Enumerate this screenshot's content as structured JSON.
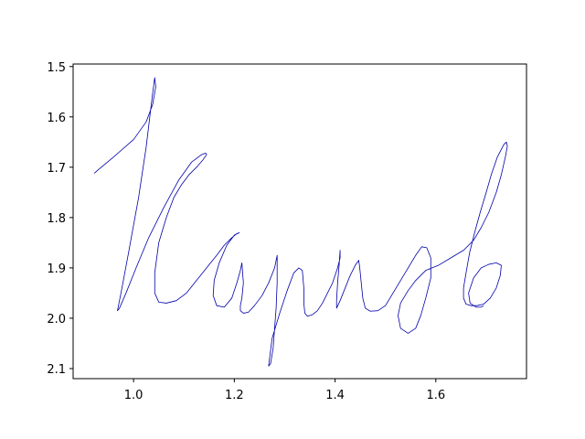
{
  "chart_data": {
    "type": "line",
    "title": "",
    "xlabel": "",
    "ylabel": "",
    "xlim": [
      0.88,
      1.78
    ],
    "ylim": [
      2.12,
      1.495
    ],
    "y_inverted": true,
    "grid": false,
    "legend": "none",
    "x_ticks": [
      {
        "value": 1.0,
        "label": "1.0"
      },
      {
        "value": 1.2,
        "label": "1.2"
      },
      {
        "value": 1.4,
        "label": "1.4"
      },
      {
        "value": 1.6,
        "label": "1.6"
      }
    ],
    "y_ticks": [
      {
        "value": 1.5,
        "label": "1.5"
      },
      {
        "value": 1.6,
        "label": "1.6"
      },
      {
        "value": 1.7,
        "label": "1.7"
      },
      {
        "value": 1.8,
        "label": "1.8"
      },
      {
        "value": 1.9,
        "label": "1.9"
      },
      {
        "value": 2.0,
        "label": "2.0"
      },
      {
        "value": 2.1,
        "label": "2.1"
      }
    ],
    "series": [
      {
        "color": "#0000aa",
        "x": [
          0.922,
          0.93,
          0.96,
          1.0,
          1.025,
          1.038,
          1.044,
          1.042,
          1.037,
          1.025,
          1.01,
          0.99,
          0.975,
          0.968,
          0.972,
          0.985,
          1.005,
          1.03,
          1.06,
          1.09,
          1.115,
          1.135,
          1.143,
          1.145,
          1.138,
          1.125,
          1.11,
          1.095,
          1.08,
          1.065,
          1.05,
          1.042,
          1.042,
          1.05,
          1.065,
          1.085,
          1.105,
          1.125,
          1.145,
          1.165,
          1.18,
          1.195,
          1.205,
          1.21,
          1.2,
          1.185,
          1.17,
          1.16,
          1.158,
          1.165,
          1.18,
          1.195,
          1.205,
          1.212,
          1.215,
          1.218,
          1.215,
          1.212,
          1.212,
          1.218,
          1.228,
          1.24,
          1.255,
          1.268,
          1.28,
          1.285,
          1.285,
          1.283,
          1.28,
          1.277,
          1.272,
          1.268,
          1.275,
          1.29,
          1.305,
          1.318,
          1.328,
          1.335,
          1.338,
          1.338,
          1.34,
          1.345,
          1.355,
          1.365,
          1.375,
          1.385,
          1.395,
          1.4,
          1.405,
          1.41,
          1.41,
          1.408,
          1.405,
          1.403,
          1.403,
          1.41,
          1.42,
          1.43,
          1.44,
          1.447,
          1.449,
          1.452,
          1.455,
          1.46,
          1.47,
          1.485,
          1.5,
          1.515,
          1.53,
          1.545,
          1.56,
          1.572,
          1.582,
          1.59,
          1.59,
          1.58,
          1.57,
          1.56,
          1.545,
          1.53,
          1.525,
          1.53,
          1.545,
          1.56,
          1.58,
          1.605,
          1.63,
          1.655,
          1.675,
          1.69,
          1.705,
          1.72,
          1.73,
          1.738,
          1.742,
          1.74,
          1.735,
          1.722,
          1.71,
          1.7,
          1.688,
          1.677,
          1.667,
          1.66,
          1.655,
          1.655,
          1.66,
          1.67,
          1.682,
          1.695,
          1.708,
          1.72,
          1.728,
          1.73,
          1.72,
          1.705,
          1.69,
          1.675,
          1.665,
          1.668,
          1.68,
          1.69,
          1.695
        ],
        "y": [
          1.712,
          1.705,
          1.68,
          1.645,
          1.61,
          1.575,
          1.54,
          1.522,
          1.56,
          1.66,
          1.76,
          1.87,
          1.95,
          1.985,
          1.98,
          1.95,
          1.9,
          1.84,
          1.78,
          1.725,
          1.69,
          1.675,
          1.672,
          1.675,
          1.685,
          1.7,
          1.715,
          1.735,
          1.76,
          1.8,
          1.85,
          1.91,
          1.95,
          1.968,
          1.97,
          1.965,
          1.95,
          1.925,
          1.9,
          1.875,
          1.855,
          1.84,
          1.832,
          1.83,
          1.835,
          1.855,
          1.89,
          1.925,
          1.955,
          1.975,
          1.978,
          1.96,
          1.93,
          1.905,
          1.89,
          1.93,
          1.96,
          1.975,
          1.985,
          1.99,
          1.988,
          1.975,
          1.955,
          1.93,
          1.9,
          1.875,
          1.93,
          1.98,
          2.02,
          2.06,
          2.09,
          2.095,
          2.04,
          1.99,
          1.945,
          1.91,
          1.9,
          1.905,
          1.94,
          1.97,
          1.99,
          1.996,
          1.993,
          1.985,
          1.97,
          1.95,
          1.93,
          1.915,
          1.9,
          1.88,
          1.865,
          1.895,
          1.93,
          1.965,
          1.98,
          1.965,
          1.94,
          1.915,
          1.895,
          1.885,
          1.9,
          1.93,
          1.96,
          1.98,
          1.986,
          1.985,
          1.975,
          1.95,
          1.925,
          1.9,
          1.875,
          1.858,
          1.86,
          1.88,
          1.92,
          1.96,
          1.995,
          2.02,
          2.03,
          2.02,
          1.995,
          1.97,
          1.945,
          1.925,
          1.905,
          1.895,
          1.88,
          1.865,
          1.845,
          1.82,
          1.79,
          1.75,
          1.715,
          1.68,
          1.658,
          1.65,
          1.655,
          1.68,
          1.715,
          1.75,
          1.79,
          1.83,
          1.87,
          1.91,
          1.94,
          1.96,
          1.972,
          1.975,
          1.975,
          1.972,
          1.96,
          1.94,
          1.915,
          1.895,
          1.89,
          1.893,
          1.9,
          1.92,
          1.95,
          1.97,
          1.978,
          1.978,
          1.975
        ]
      }
    ]
  }
}
